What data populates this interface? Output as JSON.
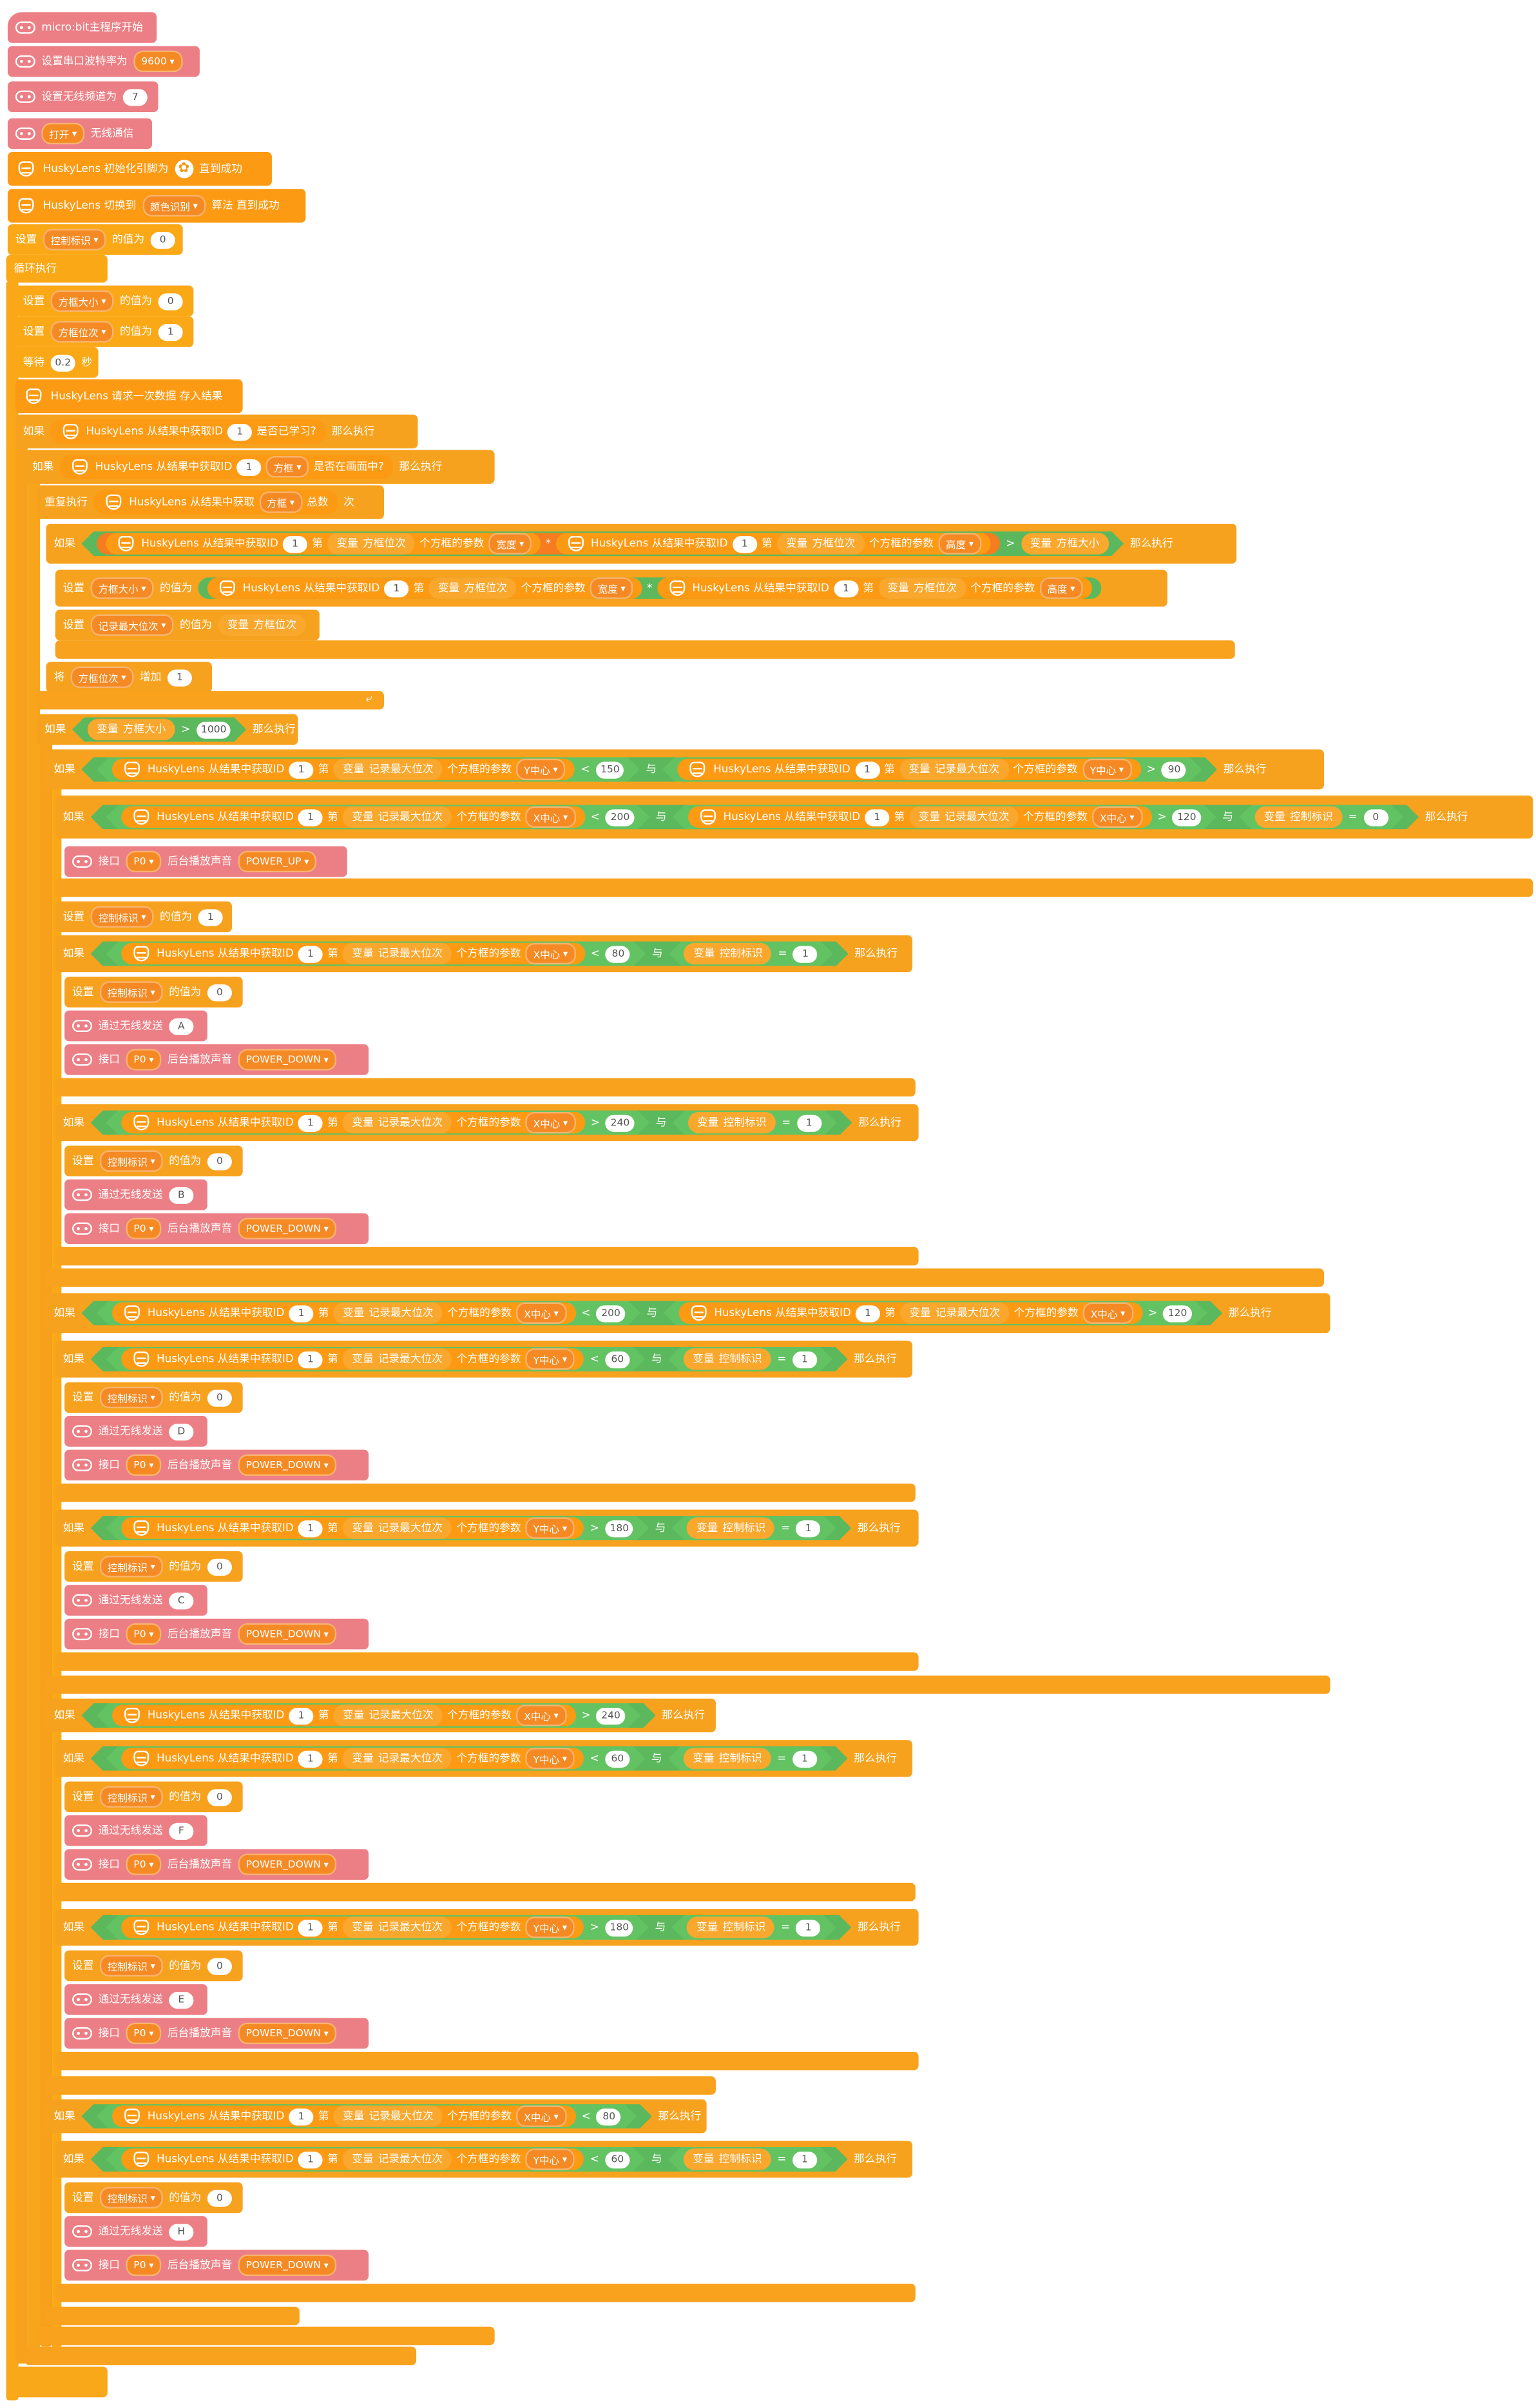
{
  "hat": {
    "label": "micro:bit主程序开始"
  },
  "setup": {
    "baud_label": "设置串口波特率为",
    "baud_value": "9600",
    "radio_group_label": "设置无线频道为",
    "radio_group_value": "7",
    "radio_open": "打开",
    "radio_open_suffix": "无线通信",
    "husky_init": "HuskyLens 初始化引脚为",
    "husky_init_suffix": "直到成功",
    "husky_switch": "HuskyLens 切换到",
    "husky_algo": "颜色识别",
    "husky_switch_suffix": "算法 直到成功",
    "set_flag_label": "设置",
    "flag_var": "控制标识",
    "to_label": "的值为",
    "flag_init": "0"
  },
  "loop": {
    "label": "循环执行"
  },
  "vars": {
    "set": "设置",
    "to": "的值为",
    "size": "方框大小",
    "idx": "方框位次",
    "max": "记录最大位次",
    "flag": "控制标识",
    "var": "变量",
    "and": "与",
    "then": "那么执行",
    "if": "如果",
    "wait": "等待",
    "sec": "秒",
    "repeat": "重复执行",
    "times": "次",
    "add": "增加",
    "inc": "将"
  },
  "loop_body": {
    "size_init": "0",
    "idx_init": "1",
    "wait_value": "0.2",
    "request": "HuskyLens 请求一次数据 存入结果",
    "learned": "HuskyLens 从结果中获取ID",
    "learned_id": "1",
    "learned_suffix": "是否已学习?",
    "on_screen": "HuskyLens 从结果中获取ID",
    "on_screen_id": "1",
    "frame": "方框",
    "on_screen_suffix": "是否在画面中?",
    "count_prefix": "HuskyLens 从结果中获取",
    "count_suffix": "总数",
    "get_id": "HuskyLens 从结果中获取ID",
    "nth": "第",
    "param": "个方框的参数",
    "width": "宽度",
    "height": "高度",
    "xc": "X中心",
    "yc": "Y中心",
    "threshold": "1000"
  },
  "mb": {
    "pin": "接口",
    "pin_value": "P0",
    "play": "后台播放声音",
    "up": "POWER_UP",
    "down": "POWER_DOWN",
    "send": "通过无线发送"
  },
  "rows": [
    {
      "x1": "150",
      "y1": "90"
    },
    {
      "a": "200",
      "b": "120",
      "flag0": "0"
    },
    {
      "x": "80",
      "f": "1",
      "s": "A"
    },
    {
      "x": "240",
      "f": "1",
      "s": "B"
    },
    {
      "x1": "200",
      "x2": "120"
    },
    {
      "y": "60",
      "f": "1",
      "s": "D"
    },
    {
      "y": "180",
      "f": "1",
      "s": "C"
    },
    {
      "x": "240"
    },
    {
      "y": "60",
      "f": "1",
      "s": "F"
    },
    {
      "y": "180",
      "f": "1",
      "s": "E"
    },
    {
      "x": "80"
    },
    {
      "y": "60",
      "f": "1",
      "s": "H"
    }
  ],
  "colors": {
    "control": "#fba817",
    "microbit": "#ec7f85",
    "huskylens": "#fd9a13",
    "logic": "#5cb85c",
    "operator": "#f57c1f"
  }
}
